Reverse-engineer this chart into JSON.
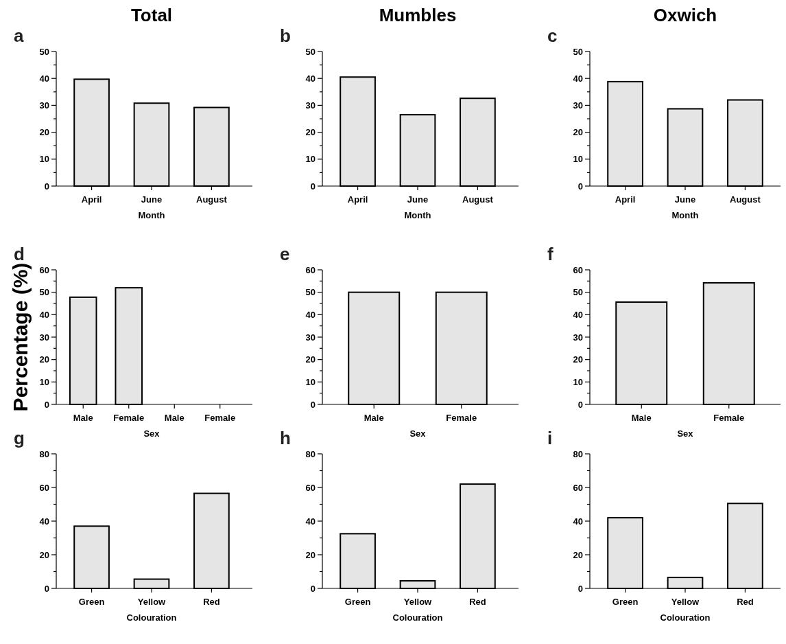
{
  "chart_data": [
    {
      "type": "bar",
      "title": "Total",
      "annotations": [
        "a"
      ],
      "xlabel": "Month",
      "categories": [
        "April",
        "June",
        "August"
      ],
      "values": [
        39.7,
        30.8,
        29.2
      ],
      "color": "#e5e5e5",
      "ylim": [
        0,
        50
      ],
      "yticks": [
        0,
        {
          "value": 5,
          "label": null
        },
        10,
        {
          "value": 15,
          "label": null
        },
        20,
        {
          "value": 25,
          "label": null
        },
        30,
        {
          "value": 35,
          "label": null
        },
        40,
        {
          "value": 45,
          "label": null
        },
        50
      ]
    },
    {
      "type": "bar",
      "title": "Mumbles",
      "annotations": [
        "b"
      ],
      "xlabel": "Month",
      "categories": [
        "April",
        "June",
        "August"
      ],
      "values": [
        40.5,
        26.5,
        32.6
      ],
      "color": "#e5e5e5",
      "ylim": [
        0,
        50
      ],
      "yticks": [
        0,
        {
          "value": 5,
          "label": null
        },
        10,
        {
          "value": 15,
          "label": null
        },
        20,
        {
          "value": 25,
          "label": null
        },
        30,
        {
          "value": 35,
          "label": null
        },
        40,
        {
          "value": 45,
          "label": null
        },
        50
      ]
    },
    {
      "type": "bar",
      "title": "Oxwich",
      "annotations": [
        "c"
      ],
      "xlabel": "Month",
      "categories": [
        "April",
        "June",
        "August"
      ],
      "values": [
        38.8,
        28.7,
        32.0
      ],
      "color": "#e5e5e5",
      "ylim": [
        0,
        50
      ],
      "yticks": [
        0,
        {
          "value": 5,
          "label": null
        },
        10,
        {
          "value": 15,
          "label": null
        },
        20,
        {
          "value": 25,
          "label": null
        },
        30,
        {
          "value": 35,
          "label": null
        },
        40,
        {
          "value": 45,
          "label": null
        },
        50
      ]
    },
    {
      "type": "bar",
      "annotations": [
        "d"
      ],
      "xlabel": "Sex",
      "ylabel": "Percentage (%)",
      "categories": [
        "Male",
        "Female",
        "Male",
        "Female"
      ],
      "values": [
        47.8,
        52.0,
        null,
        null
      ],
      "color": "#e5e5e5",
      "ylim": [
        0,
        60
      ],
      "yticks": [
        0,
        {
          "value": 5,
          "label": null
        },
        10,
        {
          "value": 15,
          "label": null
        },
        20,
        {
          "value": 25,
          "label": null
        },
        30,
        {
          "value": 35,
          "label": null
        },
        40,
        {
          "value": 45,
          "label": null
        },
        50,
        {
          "value": 55,
          "label": null
        },
        60
      ]
    },
    {
      "type": "bar",
      "annotations": [
        "e"
      ],
      "xlabel": "Sex",
      "categories": [
        "Male",
        "Female"
      ],
      "values": [
        50.0,
        50.0
      ],
      "color": "#e5e5e5",
      "ylim": [
        0,
        60
      ],
      "yticks": [
        0,
        {
          "value": 5,
          "label": null
        },
        10,
        {
          "value": 15,
          "label": null
        },
        20,
        {
          "value": 25,
          "label": null
        },
        30,
        {
          "value": 35,
          "label": null
        },
        40,
        {
          "value": 45,
          "label": null
        },
        50,
        {
          "value": 55,
          "label": null
        },
        60
      ]
    },
    {
      "type": "bar",
      "annotations": [
        "f"
      ],
      "xlabel": "Sex",
      "categories": [
        "Male",
        "Female"
      ],
      "values": [
        45.6,
        54.2
      ],
      "color": "#e5e5e5",
      "ylim": [
        0,
        60
      ],
      "yticks": [
        0,
        {
          "value": 5,
          "label": null
        },
        10,
        {
          "value": 15,
          "label": null
        },
        20,
        {
          "value": 25,
          "label": null
        },
        30,
        {
          "value": 35,
          "label": null
        },
        40,
        {
          "value": 45,
          "label": null
        },
        50,
        {
          "value": 55,
          "label": null
        },
        60
      ]
    },
    {
      "type": "bar",
      "annotations": [
        "g"
      ],
      "xlabel": "Colouration",
      "categories": [
        "Green",
        "Yellow",
        "Red"
      ],
      "values": [
        37.0,
        5.5,
        56.5
      ],
      "color": "#e5e5e5",
      "ylim": [
        0,
        80
      ],
      "yticks": [
        0,
        {
          "value": 10,
          "label": null
        },
        20,
        {
          "value": 30,
          "label": null
        },
        40,
        {
          "value": 50,
          "label": null
        },
        60,
        {
          "value": 70,
          "label": null
        },
        80
      ]
    },
    {
      "type": "bar",
      "annotations": [
        "h"
      ],
      "xlabel": "Colouration",
      "categories": [
        "Green",
        "Yellow",
        "Red"
      ],
      "values": [
        32.5,
        4.5,
        62.0
      ],
      "color": "#e5e5e5",
      "ylim": [
        0,
        80
      ],
      "yticks": [
        0,
        {
          "value": 10,
          "label": null
        },
        20,
        {
          "value": 30,
          "label": null
        },
        40,
        {
          "value": 50,
          "label": null
        },
        60,
        {
          "value": 70,
          "label": null
        },
        80
      ]
    },
    {
      "type": "bar",
      "annotations": [
        "i"
      ],
      "xlabel": "Colouration",
      "categories": [
        "Green",
        "Yellow",
        "Red"
      ],
      "values": [
        42.0,
        6.5,
        50.5
      ],
      "color": "#e5e5e5",
      "ylim": [
        0,
        80
      ],
      "yticks": [
        0,
        {
          "value": 10,
          "label": null
        },
        20,
        {
          "value": 30,
          "label": null
        },
        40,
        {
          "value": 50,
          "label": null
        },
        60,
        {
          "value": 70,
          "label": null
        },
        80
      ]
    }
  ]
}
